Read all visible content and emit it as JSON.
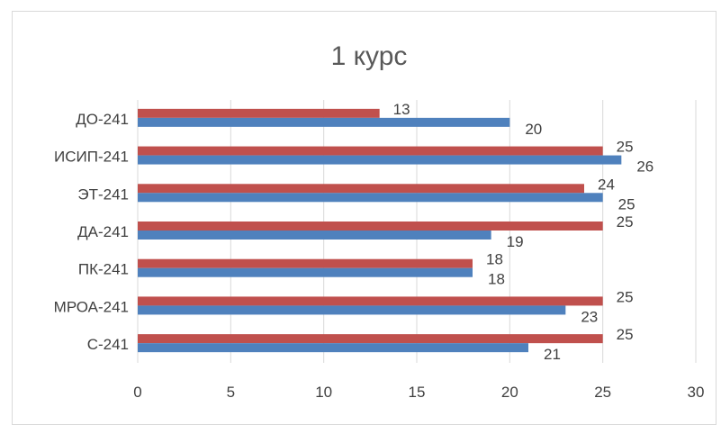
{
  "chart_data": {
    "type": "bar",
    "orientation": "horizontal",
    "title": "1 курс",
    "xlabel": "",
    "ylabel": "",
    "categories": [
      "С-241",
      "МРОА-241",
      "ПК-241",
      "ДА-241",
      "ЭТ-241",
      "ИСИП-241",
      "ДО-241"
    ],
    "series": [
      {
        "values": [
          21,
          23,
          18,
          19,
          25,
          26,
          20
        ],
        "color": "#4f81bd"
      },
      {
        "values": [
          25,
          25,
          18,
          25,
          24,
          25,
          13
        ],
        "color": "#c0504d"
      }
    ],
    "xlim": [
      0,
      30
    ],
    "xticks": [
      "0",
      "5",
      "10",
      "15",
      "20",
      "25",
      "30"
    ],
    "grid": true,
    "legend": "none"
  }
}
